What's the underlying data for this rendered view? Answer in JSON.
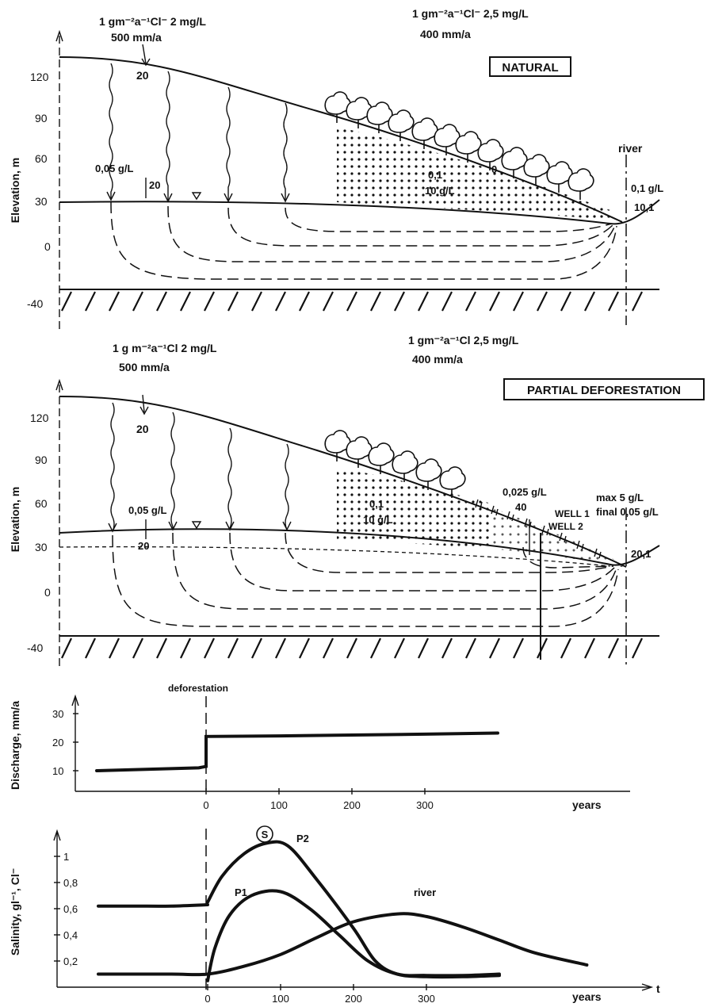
{
  "natural": {
    "title": "NATURAL",
    "input_left_line1": "1 gm⁻²a⁻¹Cl⁻ 2 mg/L",
    "input_left_line2": "500 mm/a",
    "input_right_line1": "1 gm⁻²a⁻¹Cl⁻ 2,5 mg/L",
    "input_right_line2": "400 mm/a",
    "ylabel": "Elevation, m",
    "yticks": [
      "120",
      "90",
      "60",
      "30",
      "0",
      "-40"
    ],
    "label_20_top": "20",
    "label_005": "0,05 g/L",
    "label_20_wt": "20",
    "label_01": "0,1",
    "label_10gl": "10 g/L",
    "label_0": "0",
    "river": "river",
    "river_salinity": "0,1 g/L",
    "river_value": "10,1"
  },
  "partial": {
    "title": "PARTIAL DEFORESTATION",
    "input_left_line1": "1 g m⁻²a⁻¹Cl 2 mg/L",
    "input_left_line2": "500 mm/a",
    "input_right_line1": "1 gm⁻²a⁻¹Cl 2,5 mg/L",
    "input_right_line2": "400 mm/a",
    "ylabel": "Elevation, m",
    "yticks": [
      "120",
      "90",
      "60",
      "30",
      "0",
      "-40"
    ],
    "label_20_top": "20",
    "label_005": "0,05 g/L",
    "label_20_wt": "20",
    "label_01": "0,1",
    "label_10gl": "10 g/L",
    "label_0025": "0,025 g/L",
    "label_40": "40",
    "well1": "WELL 1",
    "well2": "WELL 2",
    "max_label": "max 5 g/L",
    "final_label": "final 0,05 g/L",
    "river_value": "20,1"
  },
  "discharge": {
    "event_label": "deforestation",
    "ylabel": "Discharge, mm/a",
    "yticks": [
      "30",
      "20",
      "10"
    ],
    "xticks": [
      "0",
      "100",
      "200",
      "300"
    ],
    "xunit": "years"
  },
  "salinity": {
    "ylabel": "Salinity, gl⁻¹, Cl⁻",
    "yticks": [
      "1",
      "0,8",
      "0,6",
      "0,4",
      "0,2"
    ],
    "xticks": [
      "0",
      "100",
      "200",
      "300"
    ],
    "xunit": "years",
    "t_label": "t",
    "label_s": "S",
    "label_p2": "P2",
    "label_p1": "P1",
    "label_river": "river"
  },
  "chart_data": [
    {
      "type": "line",
      "ylabel": "Discharge, mm/a",
      "xlabel": "years",
      "annotation": "deforestation",
      "ylim": [
        5,
        33
      ],
      "series": [
        {
          "x": [
            -150,
            -10,
            0,
            0,
            100,
            200,
            300,
            400
          ],
          "values": [
            10,
            11,
            11.5,
            22,
            22.2,
            22.5,
            22.8,
            23.2
          ]
        }
      ]
    },
    {
      "type": "line",
      "ylabel": "Salinity, gl⁻¹, Cl⁻",
      "xlabel": "years",
      "ylim": [
        0,
        1.1
      ],
      "series": [
        {
          "name": "S",
          "x": [
            -150,
            -100,
            -50,
            0
          ],
          "values": [
            0.62,
            0.62,
            0.62,
            0.63
          ]
        },
        {
          "name": "P2",
          "x": [
            0,
            20,
            50,
            80,
            110,
            150,
            200,
            230,
            260,
            300,
            350,
            400
          ],
          "values": [
            0.65,
            0.85,
            1.02,
            1.1,
            1.08,
            0.82,
            0.45,
            0.2,
            0.1,
            0.08,
            0.08,
            0.09
          ]
        },
        {
          "name": "P1",
          "x": [
            0,
            10,
            30,
            60,
            100,
            140,
            180,
            220,
            260,
            300,
            350,
            400
          ],
          "values": [
            0.05,
            0.3,
            0.55,
            0.7,
            0.73,
            0.6,
            0.4,
            0.2,
            0.1,
            0.09,
            0.09,
            0.1
          ]
        },
        {
          "name": "river",
          "x": [
            -150,
            -50,
            0,
            50,
            100,
            150,
            200,
            260,
            300,
            350,
            400,
            450,
            520
          ],
          "values": [
            0.1,
            0.1,
            0.1,
            0.16,
            0.25,
            0.38,
            0.5,
            0.56,
            0.54,
            0.46,
            0.36,
            0.26,
            0.17
          ]
        }
      ]
    }
  ]
}
